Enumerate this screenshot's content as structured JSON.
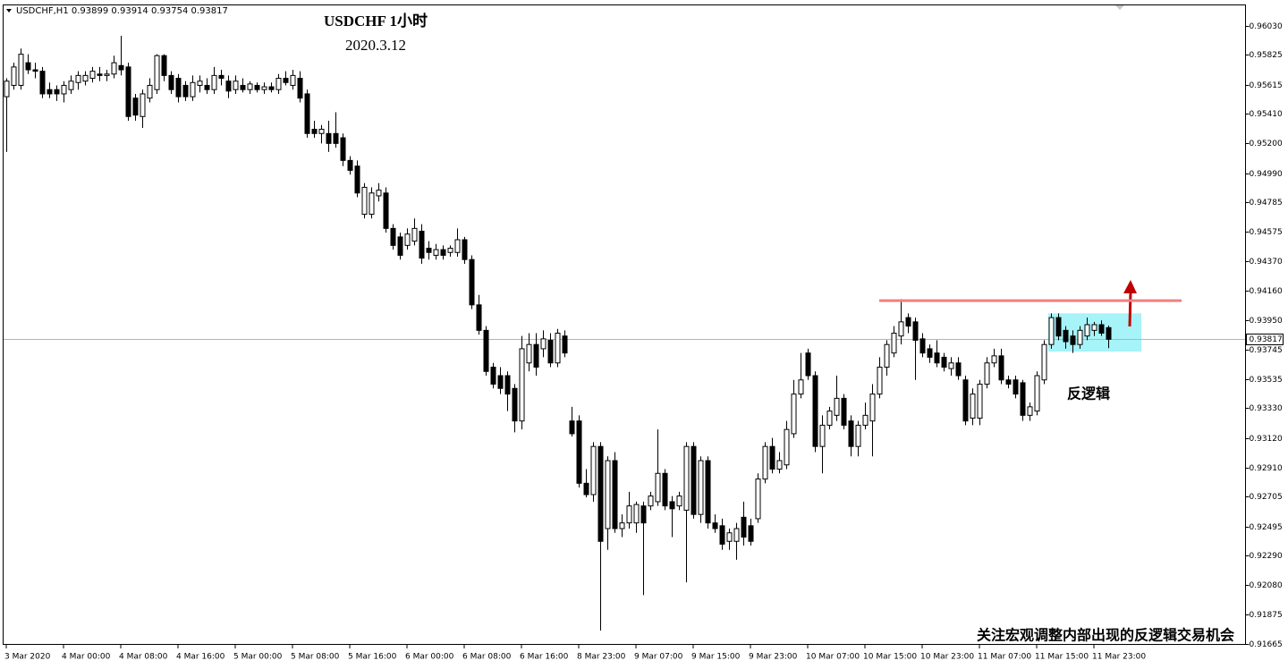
{
  "chart_data": {
    "type": "candlestick",
    "symbol": "USDCHF,H1",
    "title": "USDCHF  1小时",
    "subtitle": "2020.3.12",
    "annotation": "反逻辑",
    "footer": "关注宏观调整内部出现的反逻辑交易机会",
    "up_color": "#ffffff",
    "down_color": "#000000",
    "hline": 0.9409,
    "hline_color": "#f08080",
    "zone": [
      0.94,
      0.9373
    ],
    "zone_color": "#a6f3f8",
    "ylim": [
      0.9164,
      0.96175
    ],
    "yticks": [
      {
        "value": 0.9603,
        "label": "0.96030"
      },
      0.95825,
      0.95615,
      {
        "value": 0.9541,
        "label": "0.95410"
      },
      {
        "value": 0.952,
        "label": "0.95200"
      },
      {
        "value": 0.9499,
        "label": "0.94990"
      },
      0.94785,
      0.94575,
      {
        "value": 0.9437,
        "label": "0.94370"
      },
      {
        "value": 0.9416,
        "label": "0.94160"
      },
      {
        "value": 0.9395,
        "label": "0.93950"
      },
      0.93745,
      0.93535,
      {
        "value": 0.9333,
        "label": "0.93330"
      },
      {
        "value": 0.9312,
        "label": "0.93120"
      },
      {
        "value": 0.9291,
        "label": "0.92910"
      },
      0.92705,
      0.92495,
      {
        "value": 0.9229,
        "label": "0.92290"
      },
      {
        "value": 0.9208,
        "label": "0.92080"
      },
      0.91875,
      0.91665
    ],
    "categories": [
      "3 Mar 2020",
      null,
      null,
      null,
      null,
      null,
      null,
      null,
      "4 Mar 00:00",
      null,
      null,
      null,
      null,
      null,
      null,
      null,
      "4 Mar 08:00",
      null,
      null,
      null,
      null,
      null,
      null,
      null,
      "4 Mar 16:00",
      null,
      null,
      null,
      null,
      null,
      null,
      null,
      "5 Mar 00:00",
      null,
      null,
      null,
      null,
      null,
      null,
      null,
      "5 Mar 08:00",
      null,
      null,
      null,
      null,
      null,
      null,
      null,
      "5 Mar 16:00",
      null,
      null,
      null,
      null,
      null,
      null,
      null,
      "6 Mar 00:00",
      null,
      null,
      null,
      null,
      null,
      null,
      null,
      "6 Mar 08:00",
      null,
      null,
      null,
      null,
      null,
      null,
      null,
      "6 Mar 16:00",
      null,
      null,
      null,
      null,
      null,
      null,
      null,
      "8 Mar 23:00",
      null,
      null,
      null,
      null,
      null,
      null,
      null,
      "9 Mar 07:00",
      null,
      null,
      null,
      null,
      null,
      null,
      null,
      "9 Mar 15:00",
      null,
      null,
      null,
      null,
      null,
      null,
      null,
      "9 Mar 23:00",
      null,
      null,
      null,
      null,
      null,
      null,
      null,
      "10 Mar 07:00",
      null,
      null,
      null,
      null,
      null,
      null,
      null,
      "10 Mar 15:00",
      null,
      null,
      null,
      null,
      null,
      null,
      null,
      "10 Mar 23:00",
      null,
      null,
      null,
      null,
      null,
      null,
      null,
      "11 Mar 07:00",
      null,
      null,
      null,
      null,
      null,
      null,
      null,
      "11 Mar 15:00",
      null,
      null,
      null,
      null,
      null,
      null,
      null,
      "11 Mar 23:00",
      null,
      null
    ],
    "ohlc": [
      [
        0.9553,
        0.9566,
        0.9514,
        0.9564
      ],
      [
        0.9561,
        0.9577,
        0.9558,
        0.9574
      ],
      [
        0.9561,
        0.9587,
        0.9558,
        0.9583
      ],
      [
        0.9577,
        0.9583,
        0.9569,
        0.9572
      ],
      [
        0.9572,
        0.9577,
        0.9566,
        0.9571
      ],
      [
        0.9571,
        0.9574,
        0.9552,
        0.9555
      ],
      [
        0.9558,
        0.9563,
        0.9552,
        0.9555
      ],
      [
        0.9558,
        0.9561,
        0.955,
        0.9555
      ],
      [
        0.9555,
        0.9564,
        0.9549,
        0.9561
      ],
      [
        0.9558,
        0.9568,
        0.9555,
        0.9564
      ],
      [
        0.9563,
        0.9571,
        0.9558,
        0.9568
      ],
      [
        0.9564,
        0.9571,
        0.9561,
        0.9568
      ],
      [
        0.9566,
        0.9574,
        0.9563,
        0.9571
      ],
      [
        0.9569,
        0.9574,
        0.9564,
        0.9568
      ],
      [
        0.9568,
        0.9572,
        0.9564,
        0.9569
      ],
      [
        0.9569,
        0.9582,
        0.9566,
        0.9577
      ],
      [
        0.9575,
        0.9596,
        0.9568,
        0.9572
      ],
      [
        0.9574,
        0.9577,
        0.9536,
        0.9539
      ],
      [
        0.9552,
        0.9555,
        0.9536,
        0.954
      ],
      [
        0.9539,
        0.9558,
        0.9531,
        0.9555
      ],
      [
        0.9552,
        0.9566,
        0.9549,
        0.9561
      ],
      [
        0.9558,
        0.9583,
        0.9555,
        0.9582
      ],
      [
        0.9582,
        0.9583,
        0.9564,
        0.9568
      ],
      [
        0.9568,
        0.9571,
        0.9555,
        0.9558
      ],
      [
        0.9566,
        0.9569,
        0.9549,
        0.9553
      ],
      [
        0.9561,
        0.9564,
        0.955,
        0.9553
      ],
      [
        0.9553,
        0.9568,
        0.955,
        0.9563
      ],
      [
        0.9561,
        0.9568,
        0.9556,
        0.9564
      ],
      [
        0.9561,
        0.9566,
        0.9555,
        0.9558
      ],
      [
        0.9558,
        0.9574,
        0.9555,
        0.9568
      ],
      [
        0.9568,
        0.9572,
        0.9561,
        0.9566
      ],
      [
        0.9564,
        0.9568,
        0.9552,
        0.9557
      ],
      [
        0.9558,
        0.9568,
        0.9555,
        0.9564
      ],
      [
        0.9561,
        0.9566,
        0.9556,
        0.9558
      ],
      [
        0.9558,
        0.9564,
        0.9555,
        0.9562
      ],
      [
        0.9561,
        0.9563,
        0.9556,
        0.9558
      ],
      [
        0.9558,
        0.9563,
        0.9555,
        0.956
      ],
      [
        0.956,
        0.9563,
        0.9556,
        0.9558
      ],
      [
        0.9558,
        0.9569,
        0.9555,
        0.9566
      ],
      [
        0.9566,
        0.9571,
        0.9561,
        0.9563
      ],
      [
        0.9561,
        0.9572,
        0.9558,
        0.9568
      ],
      [
        0.9566,
        0.9571,
        0.9549,
        0.9552
      ],
      [
        0.9555,
        0.9558,
        0.9524,
        0.9527
      ],
      [
        0.953,
        0.9536,
        0.9524,
        0.9527
      ],
      [
        0.9527,
        0.9533,
        0.952,
        0.953
      ],
      [
        0.9527,
        0.9536,
        0.9514,
        0.952
      ],
      [
        0.9527,
        0.9542,
        0.9517,
        0.952
      ],
      [
        0.9524,
        0.9527,
        0.9504,
        0.9508
      ],
      [
        0.9508,
        0.9511,
        0.9498,
        0.9501
      ],
      [
        0.9504,
        0.9508,
        0.9482,
        0.9485
      ],
      [
        0.947,
        0.9492,
        0.9467,
        0.9489
      ],
      [
        0.947,
        0.9489,
        0.9467,
        0.9485
      ],
      [
        0.9483,
        0.9492,
        0.9479,
        0.9487
      ],
      [
        0.9485,
        0.9489,
        0.9457,
        0.946
      ],
      [
        0.946,
        0.9463,
        0.9445,
        0.9448
      ],
      [
        0.9454,
        0.9457,
        0.9438,
        0.9441
      ],
      [
        0.9448,
        0.946,
        0.9445,
        0.9456
      ],
      [
        0.9451,
        0.9467,
        0.9448,
        0.946
      ],
      [
        0.9458,
        0.9463,
        0.9435,
        0.9439
      ],
      [
        0.9446,
        0.9451,
        0.9438,
        0.9443
      ],
      [
        0.9441,
        0.9449,
        0.9438,
        0.9445
      ],
      [
        0.9445,
        0.9448,
        0.9438,
        0.9441
      ],
      [
        0.9443,
        0.9448,
        0.944,
        0.9446
      ],
      [
        0.9443,
        0.946,
        0.944,
        0.9452
      ],
      [
        0.9452,
        0.9454,
        0.9435,
        0.9438
      ],
      [
        0.9438,
        0.9441,
        0.9403,
        0.9406
      ],
      [
        0.9406,
        0.9413,
        0.9385,
        0.9388
      ],
      [
        0.9388,
        0.9391,
        0.9356,
        0.9359
      ],
      [
        0.9362,
        0.9365,
        0.9347,
        0.935
      ],
      [
        0.9356,
        0.9362,
        0.9343,
        0.9347
      ],
      [
        0.9356,
        0.9359,
        0.9331,
        0.9343
      ],
      [
        0.9347,
        0.935,
        0.9316,
        0.9324
      ],
      [
        0.9324,
        0.9384,
        0.9318,
        0.9375
      ],
      [
        0.9365,
        0.9386,
        0.9359,
        0.9378
      ],
      [
        0.9378,
        0.9386,
        0.9356,
        0.9362
      ],
      [
        0.9375,
        0.9388,
        0.9369,
        0.9382
      ],
      [
        0.9381,
        0.9386,
        0.9362,
        0.9365
      ],
      [
        0.9365,
        0.9389,
        0.9362,
        0.9386
      ],
      [
        0.9384,
        0.9388,
        0.9369,
        0.9372
      ],
      [
        0.9324,
        0.9334,
        0.9313,
        0.9315
      ],
      [
        0.9324,
        0.9328,
        0.9277,
        0.928
      ],
      [
        0.928,
        0.929,
        0.927,
        0.9272
      ],
      [
        0.9272,
        0.9309,
        0.9267,
        0.9306
      ],
      [
        0.9306,
        0.9309,
        0.9176,
        0.9239
      ],
      [
        0.9248,
        0.9299,
        0.9233,
        0.9296
      ],
      [
        0.9296,
        0.9302,
        0.9245,
        0.9248
      ],
      [
        0.9248,
        0.9258,
        0.9242,
        0.9252
      ],
      [
        0.9252,
        0.9274,
        0.9248,
        0.9264
      ],
      [
        0.9252,
        0.9267,
        0.9245,
        0.9265
      ],
      [
        0.9264,
        0.9267,
        0.9201,
        0.9252
      ],
      [
        0.9264,
        0.9274,
        0.9261,
        0.9271
      ],
      [
        0.9267,
        0.9318,
        0.9264,
        0.9287
      ],
      [
        0.9287,
        0.929,
        0.9261,
        0.9264
      ],
      [
        0.9267,
        0.9271,
        0.9242,
        0.9262
      ],
      [
        0.9264,
        0.9274,
        0.9261,
        0.9271
      ],
      [
        0.9261,
        0.9309,
        0.921,
        0.9306
      ],
      [
        0.9306,
        0.9309,
        0.9255,
        0.9258
      ],
      [
        0.9258,
        0.9299,
        0.9252,
        0.9296
      ],
      [
        0.9296,
        0.9299,
        0.9248,
        0.9252
      ],
      [
        0.9252,
        0.9258,
        0.9245,
        0.9248
      ],
      [
        0.925,
        0.9255,
        0.9233,
        0.9237
      ],
      [
        0.9239,
        0.9248,
        0.9233,
        0.9245
      ],
      [
        0.9239,
        0.9252,
        0.9226,
        0.9248
      ],
      [
        0.9256,
        0.9267,
        0.9236,
        0.9242
      ],
      [
        0.925,
        0.9255,
        0.9236,
        0.9239
      ],
      [
        0.9255,
        0.9287,
        0.9252,
        0.9283
      ],
      [
        0.9283,
        0.9309,
        0.928,
        0.9306
      ],
      [
        0.9306,
        0.9312,
        0.9287,
        0.929
      ],
      [
        0.929,
        0.9302,
        0.9287,
        0.9296
      ],
      [
        0.9293,
        0.9324,
        0.929,
        0.9318
      ],
      [
        0.9315,
        0.9353,
        0.9312,
        0.9343
      ],
      [
        0.9343,
        0.9372,
        0.934,
        0.9353
      ],
      [
        0.9372,
        0.9375,
        0.9353,
        0.9356
      ],
      [
        0.9356,
        0.9359,
        0.9302,
        0.9306
      ],
      [
        0.9306,
        0.9328,
        0.9287,
        0.9321
      ],
      [
        0.9321,
        0.9334,
        0.9318,
        0.9331
      ],
      [
        0.9328,
        0.9356,
        0.9324,
        0.934
      ],
      [
        0.934,
        0.9343,
        0.9318,
        0.9321
      ],
      [
        0.9324,
        0.9328,
        0.9299,
        0.9306
      ],
      [
        0.9306,
        0.9324,
        0.9299,
        0.9321
      ],
      [
        0.9321,
        0.9337,
        0.9318,
        0.9328
      ],
      [
        0.9324,
        0.935,
        0.9299,
        0.9343
      ],
      [
        0.9343,
        0.9369,
        0.934,
        0.9362
      ],
      [
        0.9362,
        0.9381,
        0.9356,
        0.9378
      ],
      [
        0.9372,
        0.9391,
        0.9369,
        0.9386
      ],
      [
        0.9384,
        0.941,
        0.9378,
        0.9394
      ],
      [
        0.9397,
        0.94,
        0.9386,
        0.9391
      ],
      [
        0.9394,
        0.9397,
        0.9353,
        0.9381
      ],
      [
        0.9382,
        0.9386,
        0.9369,
        0.9372
      ],
      [
        0.9375,
        0.9378,
        0.9365,
        0.9369
      ],
      [
        0.9372,
        0.9381,
        0.9362,
        0.9365
      ],
      [
        0.9369,
        0.9372,
        0.9359,
        0.9362
      ],
      [
        0.9361,
        0.9369,
        0.9356,
        0.9365
      ],
      [
        0.9365,
        0.9369,
        0.9353,
        0.9356
      ],
      [
        0.9353,
        0.9356,
        0.9321,
        0.9324
      ],
      [
        0.9326,
        0.9347,
        0.9321,
        0.9343
      ],
      [
        0.9326,
        0.9353,
        0.9321,
        0.935
      ],
      [
        0.935,
        0.9369,
        0.9347,
        0.9365
      ],
      [
        0.9365,
        0.9375,
        0.9362,
        0.937
      ],
      [
        0.937,
        0.9375,
        0.935,
        0.9353
      ],
      [
        0.9353,
        0.9356,
        0.9347,
        0.935
      ],
      [
        0.9353,
        0.9356,
        0.934,
        0.9343
      ],
      [
        0.9351,
        0.9353,
        0.9324,
        0.9328
      ],
      [
        0.9328,
        0.9337,
        0.9324,
        0.9334
      ],
      [
        0.9331,
        0.9359,
        0.9328,
        0.9356
      ],
      [
        0.9353,
        0.9381,
        0.935,
        0.9378
      ],
      [
        0.9378,
        0.94,
        0.9375,
        0.9397
      ],
      [
        0.9397,
        0.94,
        0.9381,
        0.9384
      ],
      [
        0.9388,
        0.9391,
        0.9375,
        0.938
      ],
      [
        0.9384,
        0.9388,
        0.9372,
        0.9378
      ],
      [
        0.9378,
        0.9391,
        0.9375,
        0.9388
      ],
      [
        0.9384,
        0.9397,
        0.9381,
        0.9392
      ],
      [
        0.9388,
        0.9394,
        0.9384,
        0.9392
      ],
      [
        0.9392,
        0.9395,
        0.9384,
        0.9386
      ],
      [
        0.93899,
        0.93914,
        0.93754,
        0.93817
      ]
    ]
  }
}
